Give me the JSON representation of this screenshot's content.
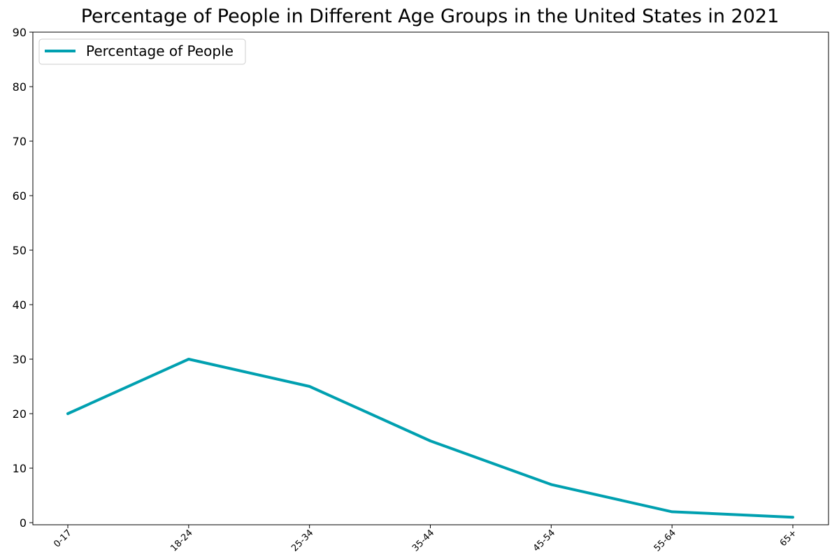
{
  "chart_data": {
    "type": "line",
    "title": "Percentage of People in Different Age Groups in the United States in 2021",
    "xlabel": "",
    "ylabel": "",
    "categories": [
      "0-17",
      "18-24",
      "25-34",
      "35-44",
      "45-54",
      "55-64",
      "65+"
    ],
    "series": [
      {
        "name": "Percentage of People",
        "values": [
          20,
          30,
          25,
          15,
          7,
          2,
          1
        ],
        "color": "#00a0b0"
      }
    ],
    "ylim": [
      0,
      90
    ],
    "yticks": [
      0,
      10,
      20,
      30,
      40,
      50,
      60,
      70,
      80,
      90
    ],
    "grid": false,
    "legend_position": "top-left",
    "xtick_rotation": 45
  }
}
